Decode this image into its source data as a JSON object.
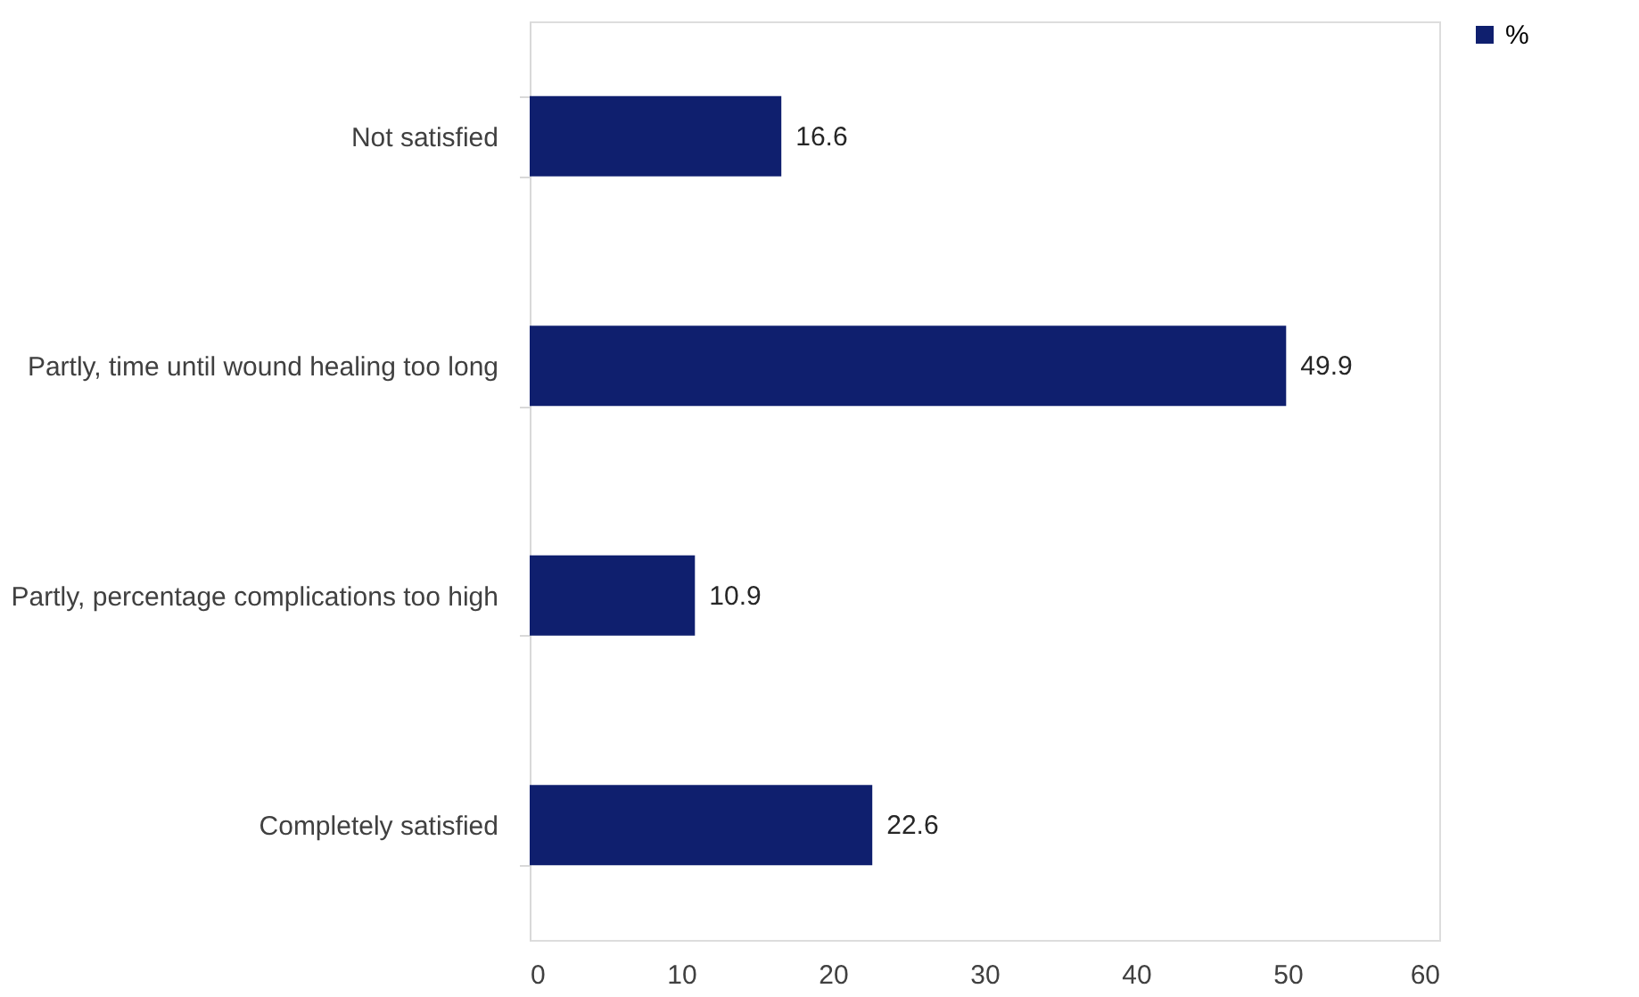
{
  "chart_data": {
    "type": "bar",
    "orientation": "horizontal",
    "categories": [
      "Not satisfied",
      "Partly, time until wound healing too long",
      "Partly, percentage complications too high",
      "Completely satisfied"
    ],
    "series": [
      {
        "name": "%",
        "color": "#0f1f6e",
        "values": [
          16.6,
          49.9,
          10.9,
          22.6
        ]
      }
    ],
    "xlim": [
      0,
      60
    ],
    "xticks": [
      0,
      10,
      20,
      30,
      40,
      50,
      60
    ],
    "data_labels": true,
    "legend": "right",
    "grid": false
  }
}
